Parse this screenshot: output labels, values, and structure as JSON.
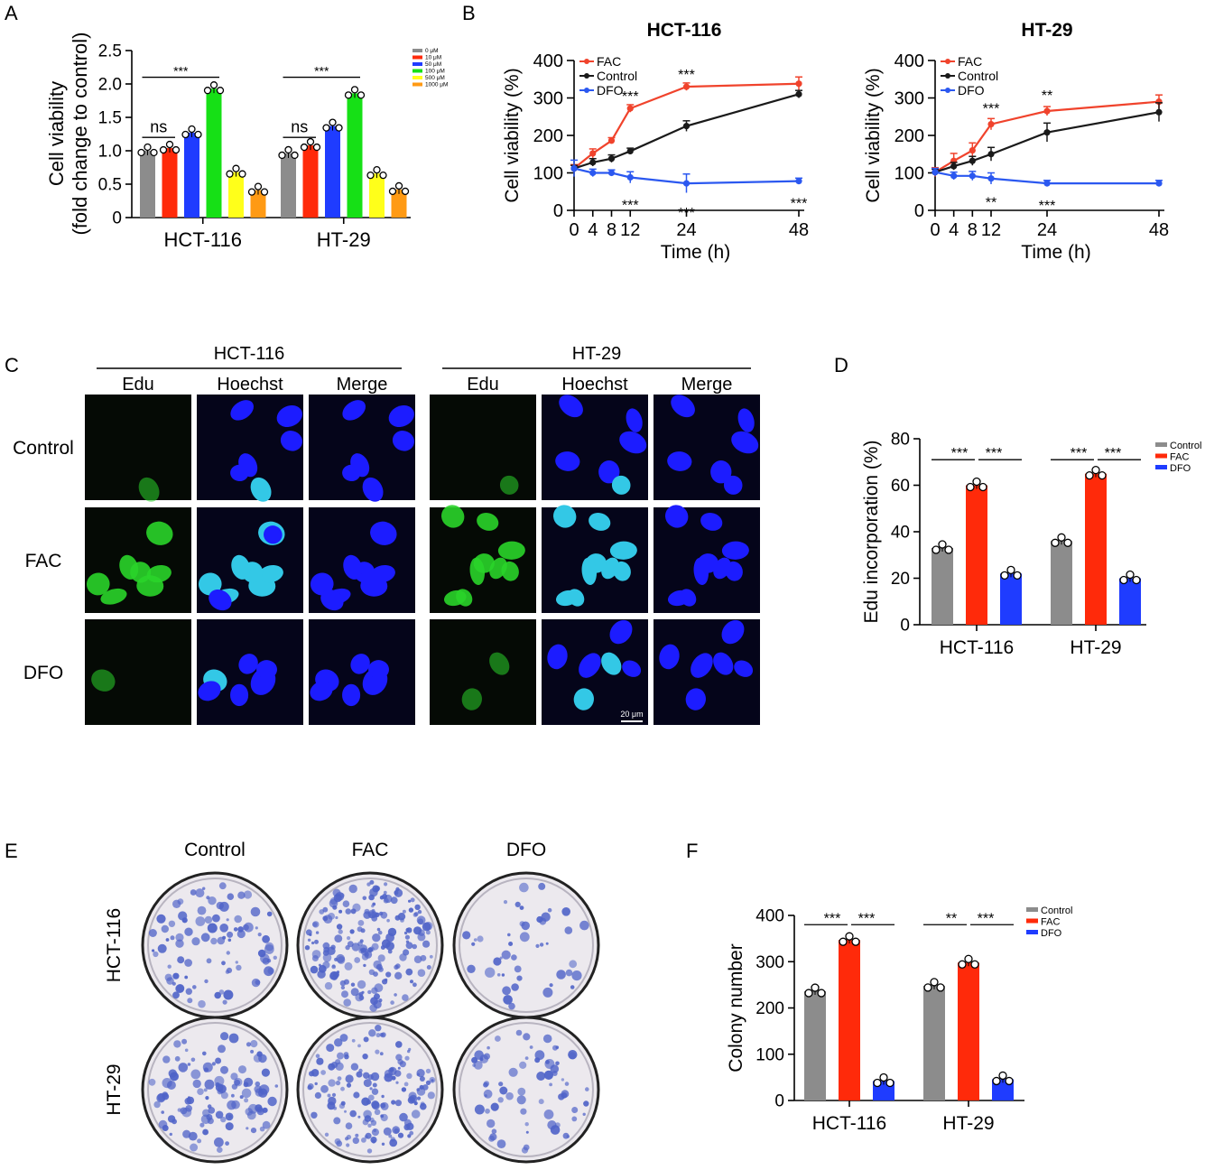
{
  "panel_letters": [
    "A",
    "B",
    "C",
    "D",
    "E",
    "F"
  ],
  "colors": {
    "gray": "#8c8c8c",
    "red": "#ff2a0a",
    "blue": "#1f3cff",
    "green": "#16e016",
    "yellow": "#ffff1a",
    "orange": "#ff9a14",
    "line_red": "#f0432c",
    "line_black": "#1a1a1a",
    "line_blue": "#2b58f0",
    "nucleus_blue": "#1c1cff",
    "nucleus_green": "#2ad42a",
    "plate_bg": "#ece9ee",
    "colony": "#4f63c8"
  },
  "chart_data": [
    {
      "id": "A",
      "type": "bar",
      "ylabel": "Cell viability",
      "ylabel2": "(fold change to control)",
      "ylim": [
        0,
        2.5
      ],
      "yticks": [
        "0",
        "0.5",
        "1.0",
        "1.5",
        "2.0",
        "2.5"
      ],
      "categories": [
        "HCT-116",
        "HT-29"
      ],
      "series": [
        {
          "name": "0 μM",
          "color": "#8c8c8c",
          "values": [
            1.0,
            0.96
          ]
        },
        {
          "name": "10 μM",
          "color": "#ff2a0a",
          "values": [
            1.04,
            1.08
          ]
        },
        {
          "name": "50 μM",
          "color": "#1f3cff",
          "values": [
            1.27,
            1.37
          ]
        },
        {
          "name": "100 μM",
          "color": "#16e016",
          "values": [
            1.93,
            1.86
          ]
        },
        {
          "name": "500 μM",
          "color": "#ffff1a",
          "values": [
            0.68,
            0.66
          ]
        },
        {
          "name": "1000 μM",
          "color": "#ff9a14",
          "values": [
            0.41,
            0.42
          ]
        }
      ],
      "annotations": [
        "ns",
        "***",
        "ns",
        "***"
      ],
      "legend": "top-right"
    },
    {
      "id": "B1",
      "type": "line",
      "title": "HCT-116",
      "xlabel": "Time (h)",
      "ylabel": "Cell viability (%)",
      "x": [
        0,
        4,
        8,
        12,
        24,
        48
      ],
      "xticks": [
        "0",
        "4",
        "8",
        "12",
        "24",
        "48"
      ],
      "ylim": [
        0,
        400
      ],
      "yticks": [
        "0",
        "100",
        "200",
        "300",
        "400"
      ],
      "series": [
        {
          "name": "FAC",
          "color": "#f0432c",
          "values": [
            112,
            152,
            186,
            272,
            330,
            338
          ],
          "err": [
            10,
            12,
            8,
            10,
            10,
            18
          ]
        },
        {
          "name": "Control",
          "color": "#1a1a1a",
          "values": [
            112,
            128,
            138,
            158,
            225,
            310
          ],
          "err": [
            8,
            10,
            10,
            8,
            14,
            10
          ]
        },
        {
          "name": "DFO",
          "color": "#2b58f0",
          "values": [
            112,
            100,
            100,
            88,
            72,
            78
          ],
          "err": [
            22,
            10,
            8,
            15,
            25,
            8
          ]
        }
      ],
      "annotations": [
        "***",
        "***",
        "***",
        "***",
        "***"
      ],
      "legend": "top-left"
    },
    {
      "id": "B2",
      "type": "line",
      "title": "HT-29",
      "xlabel": "Time (h)",
      "ylabel": "Cell viability (%)",
      "x": [
        0,
        4,
        8,
        12,
        24,
        48
      ],
      "xticks": [
        "0",
        "4",
        "8",
        "12",
        "24",
        "48"
      ],
      "ylim": [
        0,
        400
      ],
      "yticks": [
        "0",
        "100",
        "200",
        "300",
        "400"
      ],
      "series": [
        {
          "name": "FAC",
          "color": "#f0432c",
          "values": [
            102,
            132,
            160,
            230,
            265,
            290
          ],
          "err": [
            12,
            20,
            20,
            15,
            12,
            18
          ]
        },
        {
          "name": "Control",
          "color": "#1a1a1a",
          "values": [
            102,
            118,
            132,
            150,
            208,
            262
          ],
          "err": [
            8,
            10,
            12,
            18,
            25,
            25
          ]
        },
        {
          "name": "DFO",
          "color": "#2b58f0",
          "values": [
            102,
            92,
            92,
            85,
            72,
            72
          ],
          "err": [
            10,
            10,
            12,
            15,
            8,
            8
          ]
        }
      ],
      "annotations": [
        "***",
        "**",
        "**",
        "***"
      ],
      "legend": "top-left"
    },
    {
      "id": "D",
      "type": "bar",
      "ylabel": "Edu incorporation (%)",
      "ylim": [
        0,
        80
      ],
      "yticks": [
        "0",
        "20",
        "40",
        "60",
        "80"
      ],
      "categories": [
        "HCT-116",
        "HT-29"
      ],
      "series": [
        {
          "name": "Control",
          "color": "#8c8c8c",
          "values": [
            33,
            36
          ]
        },
        {
          "name": "FAC",
          "color": "#ff2a0a",
          "values": [
            60,
            65
          ]
        },
        {
          "name": "DFO",
          "color": "#1f3cff",
          "values": [
            22,
            20
          ]
        }
      ],
      "annotations": [
        "***",
        "***",
        "***",
        "***"
      ],
      "legend": "top-right"
    },
    {
      "id": "F",
      "type": "bar",
      "ylabel": "Colony number",
      "ylim": [
        0,
        400
      ],
      "yticks": [
        "0",
        "100",
        "200",
        "300",
        "400"
      ],
      "categories": [
        "HCT-116",
        "HT-29"
      ],
      "series": [
        {
          "name": "Control",
          "color": "#8c8c8c",
          "values": [
            236,
            248
          ]
        },
        {
          "name": "FAC",
          "color": "#ff2a0a",
          "values": [
            347,
            298
          ]
        },
        {
          "name": "DFO",
          "color": "#1f3cff",
          "values": [
            42,
            46
          ]
        }
      ],
      "annotations": [
        "***",
        "***",
        "**",
        "***"
      ],
      "legend": "top-right"
    }
  ],
  "panel_c": {
    "cell_lines": [
      "HCT-116",
      "HT-29"
    ],
    "stains": [
      "Edu",
      "Hoechst",
      "Merge"
    ],
    "rows": [
      "Control",
      "FAC",
      "DFO"
    ],
    "scale_bar": "20 μm"
  },
  "panel_e": {
    "columns": [
      "Control",
      "FAC",
      "DFO"
    ],
    "rows": [
      "HCT-116",
      "HT-29"
    ]
  }
}
